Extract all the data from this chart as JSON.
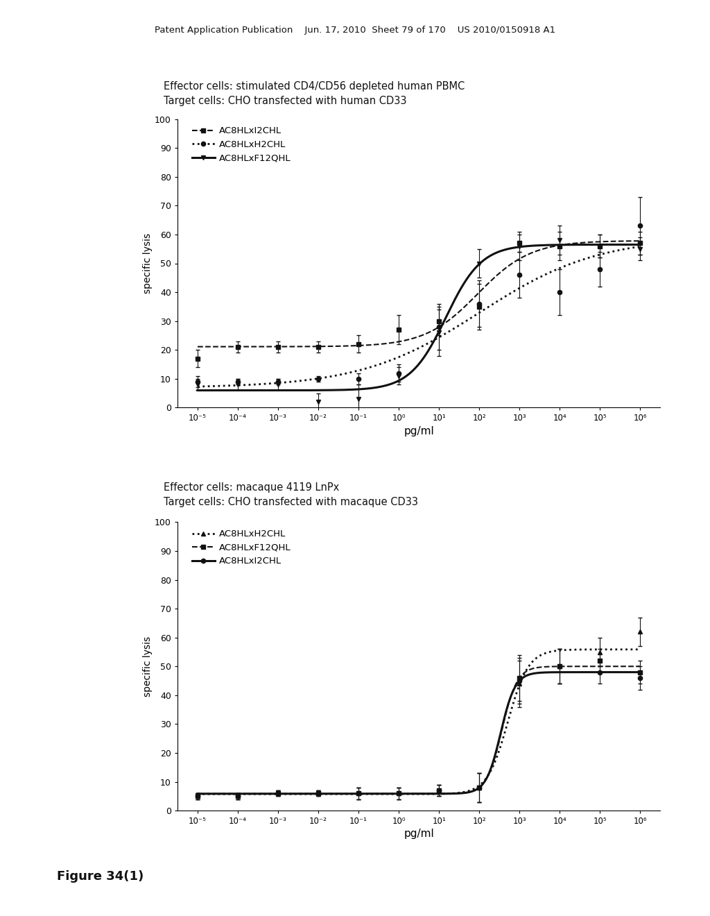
{
  "header_text": "Patent Application Publication    Jun. 17, 2010  Sheet 79 of 170    US 2010/0150918 A1",
  "figure_label": "Figure 34(1)",
  "plot1": {
    "title1": "Effector cells: stimulated CD4/CD56 depleted human PBMC",
    "title2": "Target cells: CHO transfected with human CD33",
    "xlabel": "pg/ml",
    "ylabel": "specific lysis",
    "legend": [
      "AC8HLxI2CHL",
      "AC8HLxH2CHL",
      "AC8HLxF12QHL"
    ],
    "x_powers": [
      -5,
      -4,
      -3,
      -2,
      -1,
      0,
      1,
      2,
      3,
      4,
      5,
      6
    ],
    "series1_y": [
      17,
      21,
      21,
      21,
      22,
      27,
      30,
      35,
      57,
      56,
      56,
      57
    ],
    "series1_ye": [
      3,
      2,
      2,
      2,
      3,
      5,
      5,
      8,
      3,
      5,
      4,
      4
    ],
    "series2_y": [
      9,
      9,
      9,
      10,
      10,
      12,
      28,
      36,
      46,
      40,
      48,
      63
    ],
    "series2_ye": [
      2,
      1,
      1,
      1,
      2,
      3,
      8,
      8,
      8,
      8,
      6,
      10
    ],
    "series3_y": [
      8,
      8,
      8,
      2,
      3,
      11,
      26,
      50,
      56,
      58,
      56,
      55
    ],
    "series3_ye": [
      2,
      2,
      2,
      3,
      5,
      3,
      8,
      5,
      5,
      5,
      4,
      4
    ]
  },
  "plot2": {
    "title1": "Effector cells: macaque 4119 LnPx",
    "title2": "Target cells: CHO transfected with macaque CD33",
    "xlabel": "pg/ml",
    "ylabel": "specific lysis",
    "legend": [
      "AC8HLxH2CHL",
      "AC8HLxF12QHL",
      "AC8HLxI2CHL"
    ],
    "x_powers": [
      -5,
      -4,
      -3,
      -2,
      -1,
      0,
      1,
      2,
      3,
      4,
      5,
      6
    ],
    "series1_y": [
      5,
      5,
      6,
      6,
      6,
      6,
      7,
      8,
      44,
      50,
      55,
      62
    ],
    "series1_ye": [
      1,
      1,
      1,
      1,
      2,
      2,
      2,
      5,
      8,
      6,
      5,
      5
    ],
    "series2_y": [
      5,
      5,
      6,
      6,
      6,
      6,
      7,
      8,
      46,
      50,
      52,
      48
    ],
    "series2_ye": [
      1,
      1,
      1,
      1,
      2,
      2,
      2,
      5,
      8,
      6,
      4,
      4
    ],
    "series3_y": [
      5,
      5,
      6,
      6,
      6,
      6,
      7,
      8,
      45,
      50,
      48,
      46
    ],
    "series3_ye": [
      1,
      1,
      1,
      1,
      2,
      2,
      2,
      5,
      8,
      6,
      4,
      4
    ]
  },
  "bg_color": "#ffffff",
  "line_color": "#111111",
  "xlabels": [
    "10⁻⁵",
    "10⁻⁴",
    "10⁻³",
    "10⁻²",
    "10⁻¹",
    "10⁰",
    "10¹",
    "10²",
    "10³",
    "10⁴",
    "10⁵",
    "10⁶"
  ]
}
